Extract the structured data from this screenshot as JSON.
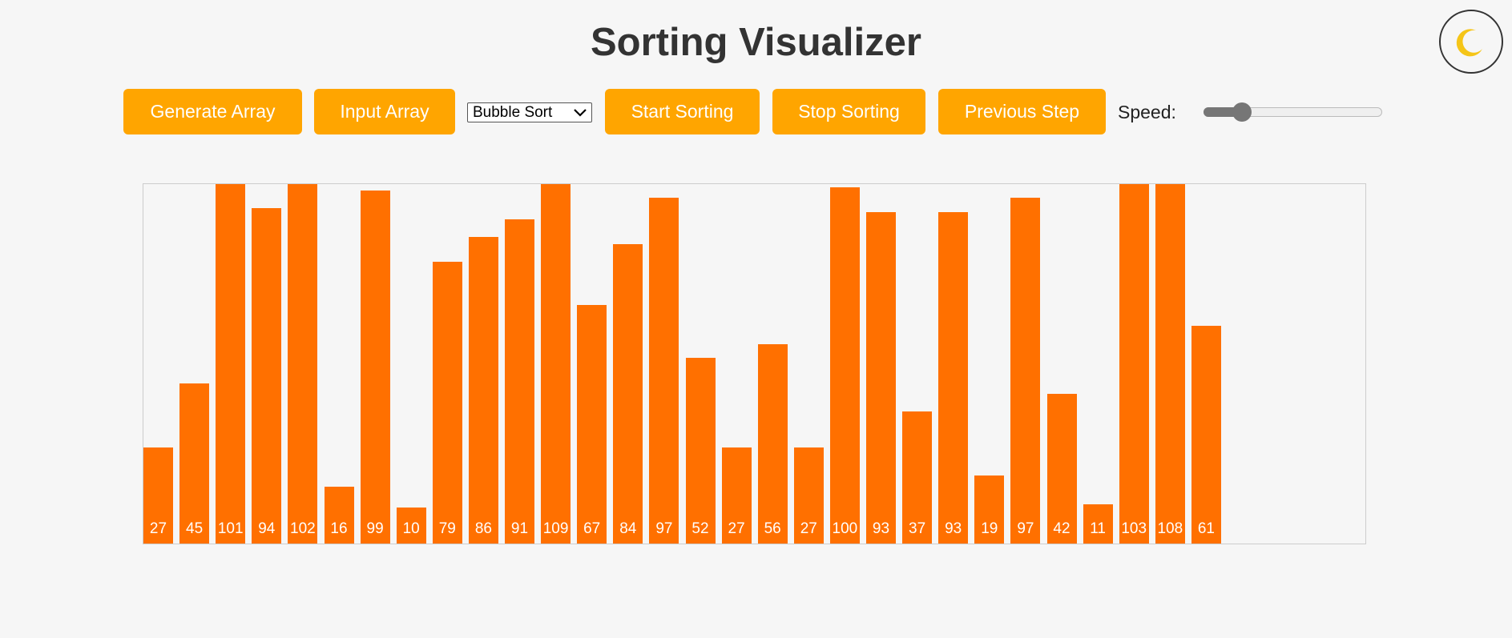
{
  "header": {
    "title": "Sorting Visualizer"
  },
  "controls": {
    "generate": "Generate Array",
    "input": "Input Array",
    "algorithm": "Bubble Sort",
    "start": "Start Sorting",
    "stop": "Stop Sorting",
    "previous": "Previous Step",
    "speed_label": "Speed:"
  },
  "array": {
    "values": [
      27,
      45,
      101,
      94,
      102,
      16,
      99,
      10,
      79,
      86,
      91,
      109,
      67,
      84,
      97,
      52,
      27,
      56,
      27,
      100,
      93,
      37,
      93,
      19,
      97,
      42,
      11,
      103,
      108,
      61
    ]
  }
}
